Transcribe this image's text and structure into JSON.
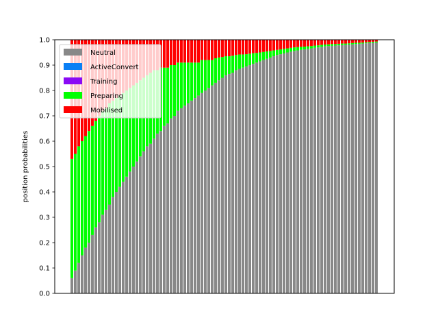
{
  "chart_data": {
    "type": "bar",
    "stacked": true,
    "ylabel": "position probabilities",
    "xlabel": "",
    "title": "",
    "ylim": [
      0,
      1.0
    ],
    "yticks": [
      "0.0",
      "0.1",
      "0.2",
      "0.3",
      "0.4",
      "0.5",
      "0.6",
      "0.7",
      "0.8",
      "0.9",
      "1.0"
    ],
    "bar_count": 90,
    "legend_position": "top-left",
    "colors": {
      "Neutral": "#888888",
      "ActiveConvert": "#0a7ff5",
      "Training": "#8a0af5",
      "Preparing": "#00ff00",
      "Mobilised": "#ff0000"
    },
    "series": [
      {
        "name": "Neutral",
        "values": [
          0.06,
          0.09,
          0.12,
          0.15,
          0.18,
          0.2,
          0.23,
          0.26,
          0.28,
          0.31,
          0.33,
          0.35,
          0.38,
          0.4,
          0.42,
          0.44,
          0.46,
          0.48,
          0.5,
          0.52,
          0.54,
          0.56,
          0.58,
          0.59,
          0.61,
          0.63,
          0.64,
          0.66,
          0.67,
          0.69,
          0.7,
          0.72,
          0.73,
          0.74,
          0.75,
          0.76,
          0.77,
          0.78,
          0.79,
          0.8,
          0.81,
          0.82,
          0.83,
          0.84,
          0.85,
          0.86,
          0.865,
          0.87,
          0.88,
          0.885,
          0.89,
          0.895,
          0.9,
          0.905,
          0.91,
          0.915,
          0.92,
          0.925,
          0.93,
          0.935,
          0.94,
          0.943,
          0.946,
          0.95,
          0.953,
          0.956,
          0.958,
          0.96,
          0.962,
          0.964,
          0.966,
          0.968,
          0.97,
          0.972,
          0.974,
          0.975,
          0.976,
          0.977,
          0.978,
          0.979,
          0.98,
          0.981,
          0.982,
          0.983,
          0.984,
          0.985,
          0.986,
          0.987,
          0.988,
          0.989
        ]
      },
      {
        "name": "ActiveConvert",
        "values": []
      },
      {
        "name": "Training",
        "values": []
      },
      {
        "name": "Preparing",
        "values": [
          0.47,
          0.46,
          0.46,
          0.45,
          0.44,
          0.44,
          0.43,
          0.42,
          0.42,
          0.41,
          0.4,
          0.4,
          0.38,
          0.37,
          0.36,
          0.35,
          0.34,
          0.33,
          0.32,
          0.31,
          0.3,
          0.29,
          0.28,
          0.28,
          0.27,
          0.25,
          0.25,
          0.23,
          0.22,
          0.21,
          0.2,
          0.19,
          0.18,
          0.17,
          0.16,
          0.15,
          0.14,
          0.13,
          0.13,
          0.12,
          0.11,
          0.1,
          0.097,
          0.09,
          0.082,
          0.075,
          0.07,
          0.067,
          0.06,
          0.057,
          0.052,
          0.048,
          0.045,
          0.042,
          0.038,
          0.035,
          0.032,
          0.029,
          0.026,
          0.023,
          0.02,
          0.019,
          0.018,
          0.016,
          0.015,
          0.014,
          0.013,
          0.012,
          0.011,
          0.01,
          0.009,
          0.009,
          0.008,
          0.008,
          0.007,
          0.007,
          0.007,
          0.006,
          0.006,
          0.006,
          0.005,
          0.005,
          0.005,
          0.005,
          0.004,
          0.004,
          0.004,
          0.004,
          0.004,
          0.004
        ]
      },
      {
        "name": "Mobilised",
        "values": []
      }
    ]
  }
}
